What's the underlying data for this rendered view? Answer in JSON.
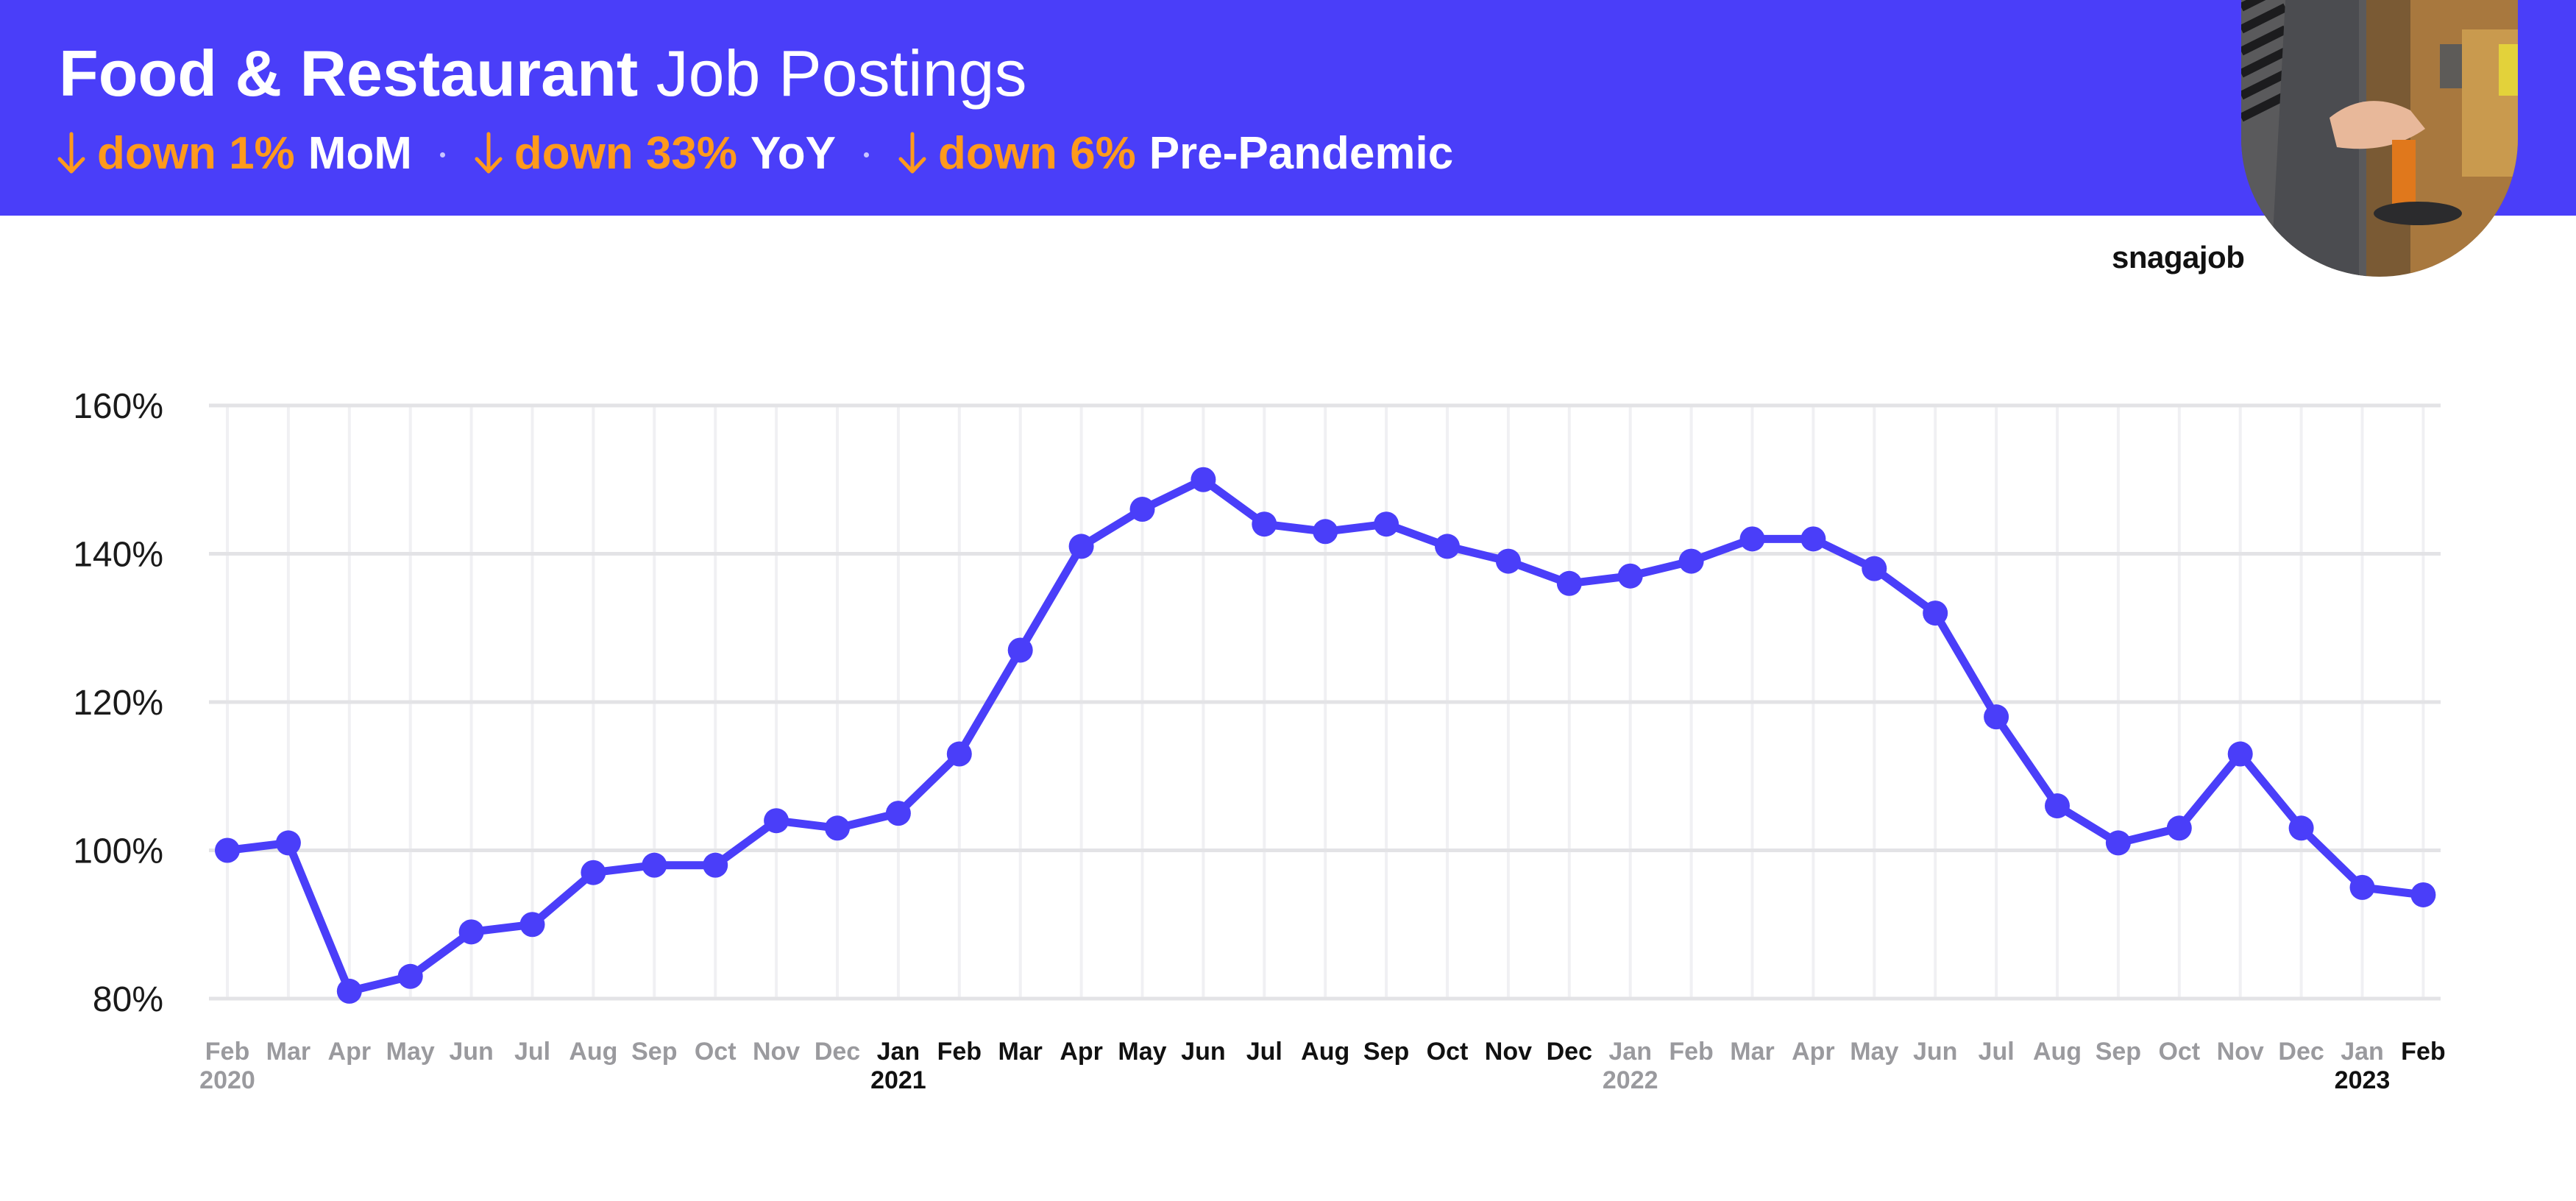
{
  "header": {
    "title_bold": "Food & Restaurant",
    "title_light": "Job Postings",
    "stats": [
      {
        "change": "down 1%",
        "label": "MoM"
      },
      {
        "change": "down 33%",
        "label": "YoY"
      },
      {
        "change": "down 6%",
        "label": "Pre-Pandemic"
      }
    ]
  },
  "brand": {
    "logo_text": "snagajob"
  },
  "colors": {
    "banner": "#4a3ef9",
    "series": "#4a3ef9",
    "change_accent": "#ff9a1c"
  },
  "chart_data": {
    "type": "line",
    "title": "",
    "xlabel": "",
    "ylabel": "",
    "ylim": [
      80,
      160
    ],
    "ytick_labels": [
      "80%",
      "100%",
      "120%",
      "140%",
      "160%"
    ],
    "yticks": [
      80,
      100,
      120,
      140,
      160
    ],
    "grid": true,
    "categories": [
      "Feb",
      "Mar",
      "Apr",
      "May",
      "Jun",
      "Jul",
      "Aug",
      "Sep",
      "Oct",
      "Nov",
      "Dec",
      "Jan",
      "Feb",
      "Mar",
      "Apr",
      "May",
      "Jun",
      "Jul",
      "Aug",
      "Sep",
      "Oct",
      "Nov",
      "Dec",
      "Jan",
      "Feb",
      "Mar",
      "Apr",
      "May",
      "Jun",
      "Jul",
      "Aug",
      "Sep",
      "Oct",
      "Nov",
      "Dec",
      "Jan",
      "Feb"
    ],
    "year_labels": [
      {
        "index": 0,
        "label": "2020"
      },
      {
        "index": 11,
        "label": "2021"
      },
      {
        "index": 23,
        "label": "2022"
      },
      {
        "index": 35,
        "label": "2023"
      }
    ],
    "highlight_range": [
      11,
      22
    ],
    "highlight_last": 36,
    "series": [
      {
        "values": [
          100,
          101,
          81,
          83,
          89,
          90,
          97,
          98,
          98,
          104,
          103,
          105,
          113,
          127,
          141,
          146,
          150,
          144,
          143,
          144,
          141,
          139,
          136,
          137,
          139,
          142,
          142,
          138,
          132,
          118,
          106,
          101,
          103,
          113,
          103,
          95,
          94
        ]
      }
    ]
  }
}
